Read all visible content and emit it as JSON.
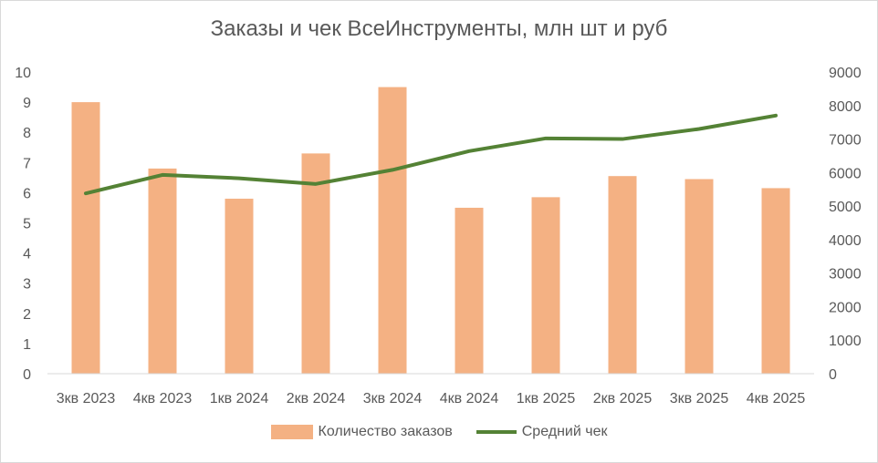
{
  "chart_data": {
    "type": "bar",
    "title": "Заказы и чек ВсеИнструменты, млн шт и руб",
    "categories": [
      "3кв 2023",
      "4кв 2023",
      "1кв 2024",
      "2кв 2024",
      "3кв 2024",
      "4кв 2024",
      "1кв 2025",
      "2кв 2025",
      "3кв 2025",
      "4кв 2025"
    ],
    "series": [
      {
        "name": "Количество заказов",
        "type": "bar",
        "axis": "left",
        "color": "#f4b183",
        "values": [
          9.0,
          6.8,
          5.8,
          7.3,
          9.5,
          5.5,
          5.85,
          6.55,
          6.45,
          6.15
        ]
      },
      {
        "name": "Средний чек",
        "type": "line",
        "axis": "right",
        "color": "#548235",
        "values": [
          5380,
          5930,
          5830,
          5660,
          6080,
          6640,
          7020,
          7000,
          7300,
          7700
        ]
      }
    ],
    "y_left": {
      "min": 0,
      "max": 10,
      "step": 1
    },
    "y_right": {
      "min": 0,
      "max": 9000,
      "step": 1000
    },
    "legend_position": "bottom",
    "grid": false
  }
}
